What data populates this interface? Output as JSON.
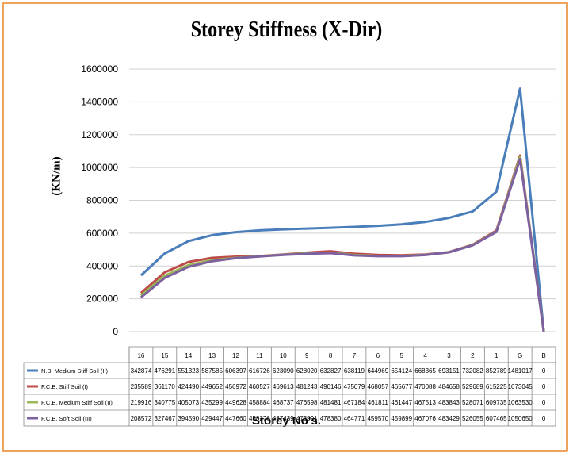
{
  "chart_data": {
    "type": "line",
    "title": "Storey Stiffness (X-Dir)",
    "xlabel": "Storey No's.",
    "ylabel": "(KN/m)",
    "ylim": [
      0,
      1600000
    ],
    "yticks": [
      "0",
      "200000",
      "400000",
      "600000",
      "800000",
      "1000000",
      "1200000",
      "1400000",
      "1600000"
    ],
    "categories": [
      "16",
      "15",
      "14",
      "13",
      "12",
      "11",
      "10",
      "9",
      "8",
      "7",
      "6",
      "5",
      "4",
      "3",
      "2",
      "1",
      "G",
      "B"
    ],
    "series": [
      {
        "name": "N.B. Medium Stiff Soil (II)",
        "color": "#4a7ebb",
        "values": [
          342874,
          476291,
          551323,
          587585,
          606397,
          616726,
          623090,
          628020,
          632827,
          638119,
          644969,
          654124,
          668365,
          693151,
          732082,
          852789,
          1481017,
          0
        ]
      },
      {
        "name": "F.C.B. Stiff Soil (I)",
        "color": "#be4b48",
        "values": [
          235589,
          361170,
          424490,
          449652,
          456972,
          460527,
          469613,
          481243,
          490146,
          475079,
          468057,
          465677,
          470088,
          484658,
          529689,
          615225,
          1073045,
          0
        ]
      },
      {
        "name": "F.C.B. Medium Stiff Soil (II)",
        "color": "#98b954",
        "values": [
          219916,
          340775,
          405073,
          435299,
          449628,
          458884,
          468737,
          476598,
          481481,
          467184,
          461811,
          461447,
          467513,
          483843,
          528071,
          609735,
          1063530,
          0
        ]
      },
      {
        "name": "F.C.B. Soft Soil (III)",
        "color": "#7d60a0",
        "values": [
          208572,
          327467,
          394590,
          429447,
          447660,
          458276,
          467439,
          473991,
          478380,
          464771,
          459570,
          459899,
          467076,
          483429,
          526055,
          607465,
          1050650,
          0
        ]
      }
    ],
    "grid": "horizontal",
    "legend": "data-table"
  }
}
